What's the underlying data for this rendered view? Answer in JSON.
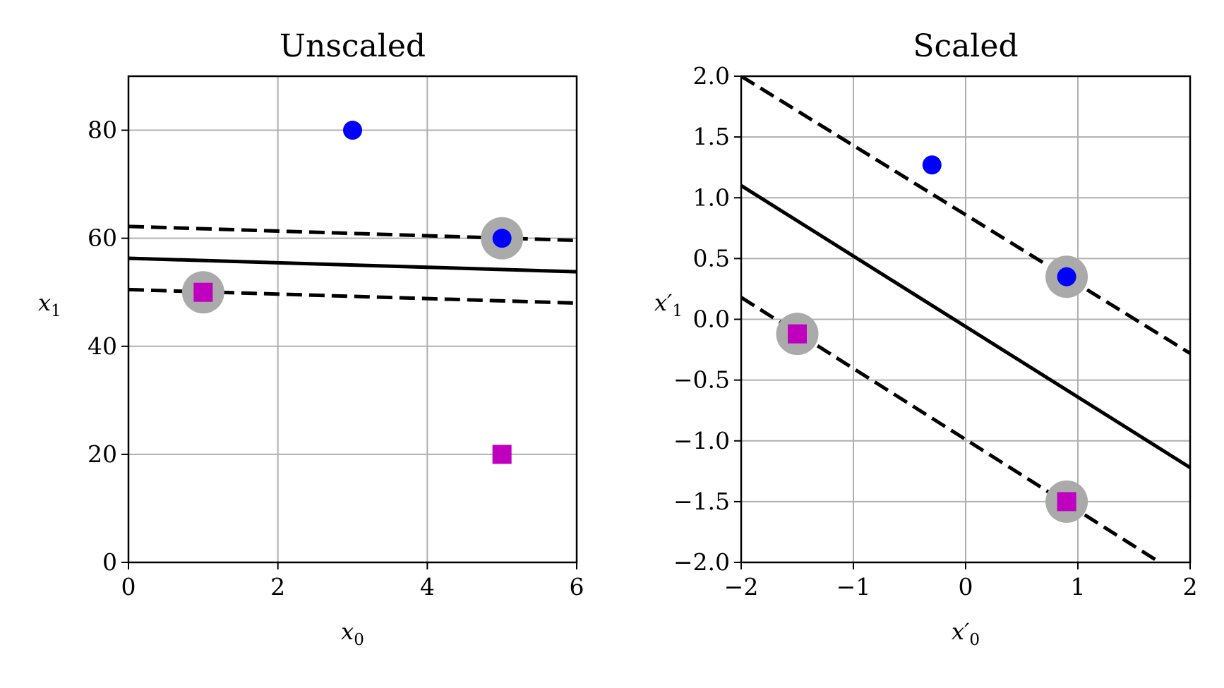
{
  "chart_data": [
    {
      "type": "scatter",
      "title": "Unscaled",
      "xlabel": "x_0",
      "ylabel": "x_1",
      "xlabel_main": "x",
      "xlabel_sub": "0",
      "ylabel_main": "x",
      "ylabel_sub": "1",
      "xlim": [
        0,
        6
      ],
      "ylim": [
        0,
        90
      ],
      "xticks": [
        0,
        2,
        4,
        6
      ],
      "xtick_labels": [
        "0",
        "2",
        "4",
        "6"
      ],
      "yticks": [
        0,
        20,
        40,
        60,
        80
      ],
      "ytick_labels": [
        "0",
        "20",
        "40",
        "60",
        "80"
      ],
      "grid": true,
      "series": [
        {
          "marker": "circle",
          "color": "#0000ff",
          "points": [
            [
              3,
              80
            ],
            [
              5,
              60
            ]
          ]
        },
        {
          "marker": "square",
          "color": "#bf00bf",
          "points": [
            [
              1,
              50
            ],
            [
              5,
              20
            ]
          ]
        }
      ],
      "support_vectors": [
        [
          5,
          60
        ],
        [
          1,
          50
        ]
      ],
      "lines": [
        {
          "style": "solid",
          "points": [
            [
              0,
              56.3
            ],
            [
              6,
              53.8
            ]
          ]
        },
        {
          "style": "dashed",
          "points": [
            [
              0,
              62.2
            ],
            [
              6,
              59.6
            ]
          ]
        },
        {
          "style": "dashed",
          "points": [
            [
              0,
              50.5
            ],
            [
              6,
              48.0
            ]
          ]
        }
      ]
    },
    {
      "type": "scatter",
      "title": "Scaled",
      "xlabel": "x'_0",
      "ylabel": "x'_1",
      "xlabel_main": "x′",
      "xlabel_sub": "0",
      "ylabel_main": "x′",
      "ylabel_sub": "1",
      "xlim": [
        -2,
        2
      ],
      "ylim": [
        -2,
        2
      ],
      "xticks": [
        -2,
        -1,
        0,
        1,
        2
      ],
      "xtick_labels": [
        "−2",
        "−1",
        "0",
        "1",
        "2"
      ],
      "yticks": [
        -2,
        -1.5,
        -1,
        -0.5,
        0,
        0.5,
        1,
        1.5,
        2
      ],
      "ytick_labels": [
        "−2.0",
        "−1.5",
        "−1.0",
        "−0.5",
        "0.0",
        "0.5",
        "1.0",
        "1.5",
        "2.0"
      ],
      "grid": true,
      "series": [
        {
          "marker": "circle",
          "color": "#0000ff",
          "points": [
            [
              -0.3,
              1.27
            ],
            [
              0.9,
              0.35
            ]
          ]
        },
        {
          "marker": "square",
          "color": "#bf00bf",
          "points": [
            [
              -1.5,
              -0.12
            ],
            [
              0.9,
              -1.5
            ]
          ]
        }
      ],
      "support_vectors": [
        [
          0.9,
          0.35
        ],
        [
          -1.5,
          -0.12
        ],
        [
          0.9,
          -1.5
        ]
      ],
      "lines": [
        {
          "style": "solid",
          "points": [
            [
              -2,
              1.1
            ],
            [
              2,
              -1.22
            ]
          ]
        },
        {
          "style": "dashed",
          "points": [
            [
              -2,
              2.0
            ],
            [
              2,
              -0.28
            ]
          ]
        },
        {
          "style": "dashed",
          "points": [
            [
              -2,
              0.18
            ],
            [
              1.73,
              -2.0
            ]
          ]
        }
      ]
    }
  ]
}
